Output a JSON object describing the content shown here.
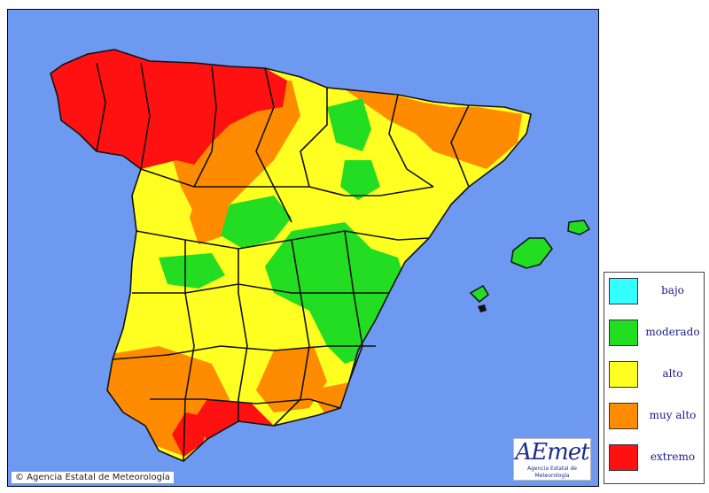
{
  "map": {
    "copyright": "© Agencia Estatal de Meteorología",
    "logo": {
      "word": "AEmet",
      "subtitle": "Agencia Estatal de Meteorología"
    },
    "sea_color": "#6d99f0",
    "border_color": "#111111"
  },
  "legend": {
    "items": [
      {
        "label": "bajo",
        "color": "#33ffff"
      },
      {
        "label": "moderado",
        "color": "#22dd22"
      },
      {
        "label": "alto",
        "color": "#ffff22"
      },
      {
        "label": "muy alto",
        "color": "#ff8c00"
      },
      {
        "label": "extremo",
        "color": "#ff1111"
      }
    ]
  }
}
